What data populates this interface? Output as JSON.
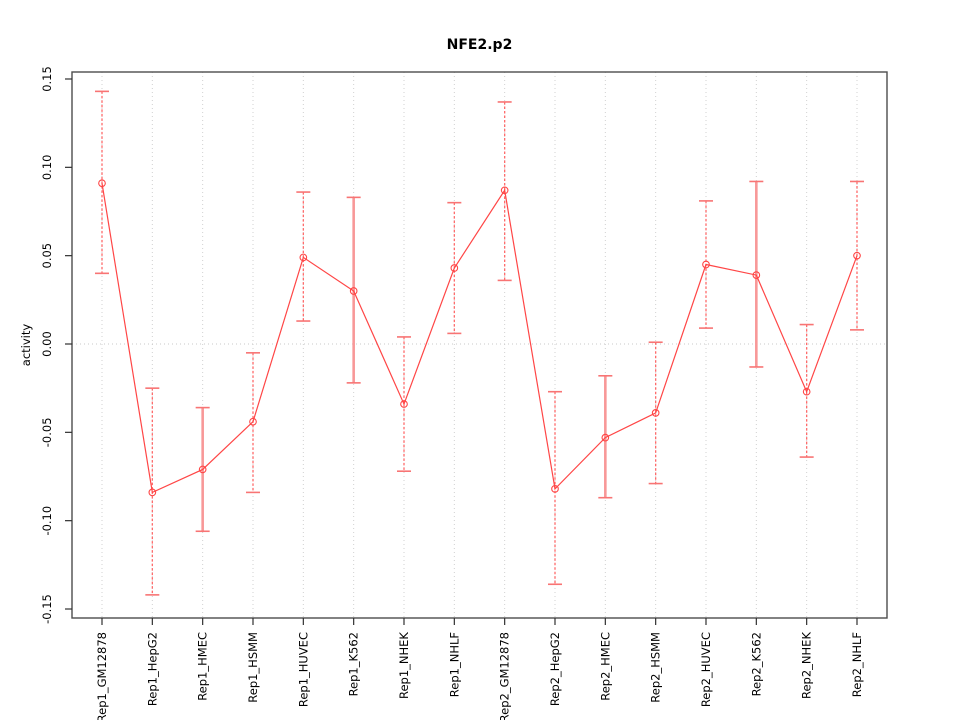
{
  "figure": {
    "background_color": "#ffffff"
  },
  "chart_data": {
    "type": "line",
    "title": "NFE2.p2",
    "xlabel": "",
    "ylabel": "activity",
    "ylim": [
      -0.155,
      0.155
    ],
    "yticks": [
      -0.15,
      -0.1,
      -0.05,
      0.0,
      0.05,
      0.1,
      0.15
    ],
    "ytick_labels": [
      "-0.15",
      "-0.10",
      "-0.05",
      "0.00",
      "0.05",
      "0.10",
      "0.15"
    ],
    "categories": [
      "Rep1_GM12878",
      "Rep1_HepG2",
      "Rep1_HMEC",
      "Rep1_HSMM",
      "Rep1_HUVEC",
      "Rep1_K562",
      "Rep1_NHEK",
      "Rep1_NHLF",
      "Rep2_GM12878",
      "Rep2_HepG2",
      "Rep2_HMEC",
      "Rep2_HSMM",
      "Rep2_HUVEC",
      "Rep2_K562",
      "Rep2_NHEK",
      "Rep2_NHLF"
    ],
    "series": [
      {
        "name": "activity",
        "marker": "open-circle",
        "values": [
          0.091,
          -0.084,
          -0.071,
          -0.044,
          0.049,
          0.03,
          -0.034,
          0.043,
          0.087,
          -0.082,
          -0.053,
          -0.039,
          0.045,
          0.039,
          -0.027,
          0.05
        ],
        "error_low": [
          0.04,
          -0.142,
          -0.106,
          -0.084,
          0.013,
          -0.022,
          -0.072,
          0.006,
          0.036,
          -0.136,
          -0.087,
          -0.079,
          0.009,
          -0.013,
          -0.064,
          0.008
        ],
        "error_high": [
          0.143,
          -0.025,
          -0.036,
          -0.005,
          0.086,
          0.083,
          0.004,
          0.08,
          0.137,
          -0.027,
          -0.018,
          0.001,
          0.081,
          0.092,
          0.011,
          0.092
        ]
      }
    ],
    "thick_bar_indices": [
      2,
      5,
      10,
      13
    ],
    "grid": {
      "vertical_dotted_at_each_category": true,
      "horizontal_dotted_at_zero": true
    },
    "legend": "none",
    "colors": {
      "series_line": "#FF4646",
      "marker_stroke": "#FF4646",
      "error_bar_thin": "#FF6A6A",
      "error_bar_thick": "#F89898",
      "error_bar_cap": "#F87474",
      "grid_line": "#D0D0D0",
      "zero_line": "#C8C8C8",
      "frame": "#4D4D4D",
      "tick": "#303030",
      "text": "#000000"
    }
  }
}
